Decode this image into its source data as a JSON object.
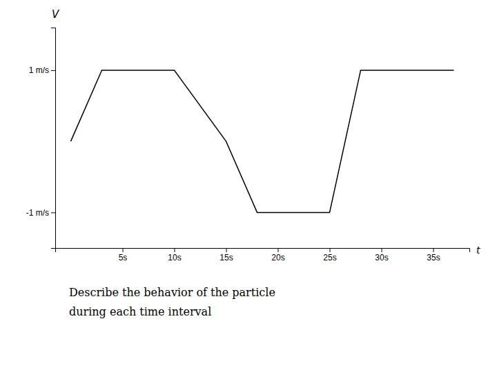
{
  "chart_data": {
    "type": "line",
    "x": [
      0,
      3,
      10,
      15,
      18,
      25,
      28,
      37
    ],
    "values": [
      0,
      1,
      1,
      0,
      -1,
      -1,
      1,
      1
    ],
    "color": "#000000",
    "x_label": "t",
    "y_label": "V",
    "xlim": [
      -1.5,
      38.5
    ],
    "ylim": [
      -1.5,
      1.6
    ],
    "xticks": [
      {
        "value": 5,
        "label": "5s"
      },
      {
        "value": 10,
        "label": "10s"
      },
      {
        "value": 15,
        "label": "15s"
      },
      {
        "value": 20,
        "label": "20s"
      },
      {
        "value": 25,
        "label": "25s"
      },
      {
        "value": 30,
        "label": "30s"
      },
      {
        "value": 35,
        "label": "35s"
      }
    ],
    "yticks": [
      {
        "value": -1,
        "label": "-1 m/s"
      },
      {
        "value": 1,
        "label": "1 m/s"
      }
    ],
    "annotations": [
      "Describe the behavior of the particle",
      "during each time interval"
    ],
    "grid": false
  }
}
